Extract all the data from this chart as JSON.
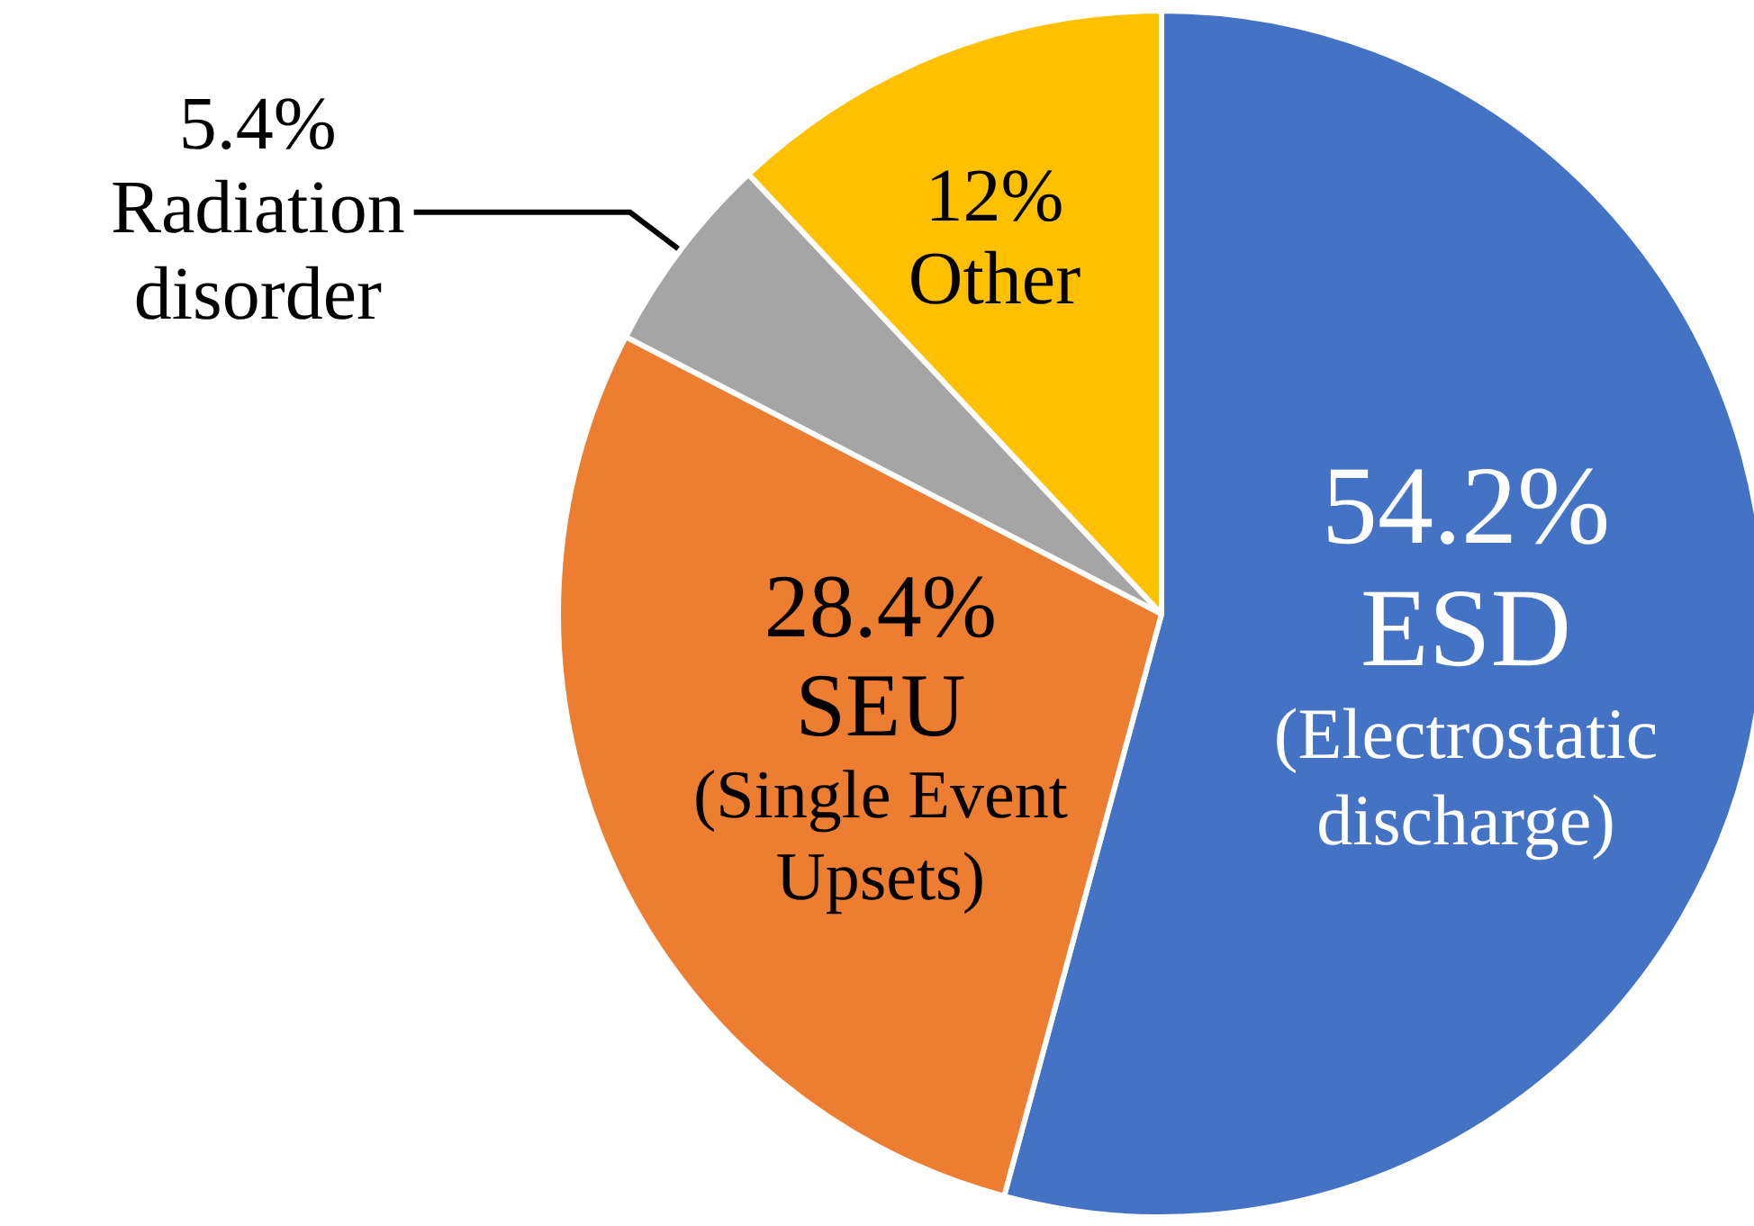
{
  "chart_data": {
    "type": "pie",
    "categories": [
      "ESD\n(Electrostatic\ndischarge)",
      "SEU\n(Single Event\nUpsets)",
      "Radiation\ndisorder",
      "Other"
    ],
    "values": [
      54.2,
      28.4,
      5.4,
      12
    ],
    "value_labels": [
      "54.2%",
      "28.4%",
      "5.4%",
      "12%"
    ],
    "colors": [
      "#4472c4",
      "#ed7d31",
      "#a5a5a5",
      "#ffc000"
    ],
    "legend": false
  }
}
